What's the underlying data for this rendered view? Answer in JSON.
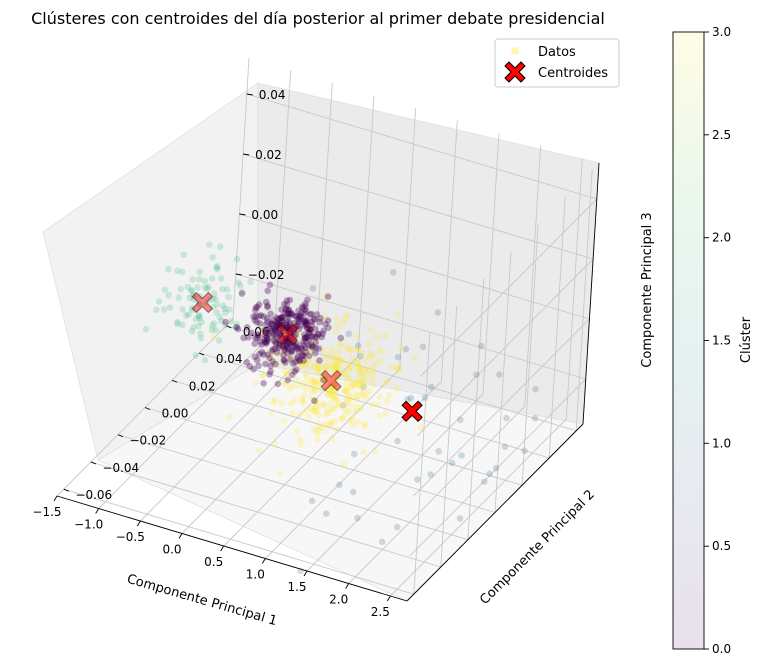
{
  "chart_data": {
    "type": "scatter",
    "title": "Clústeres con centroides del día posterior al primer debate presidencial",
    "axes": {
      "x": {
        "label": "Componente Principal 1",
        "ticks": [
          "−1.5",
          "−1.0",
          "−0.5",
          "0.0",
          "0.5",
          "1.0",
          "1.5",
          "2.0",
          "2.5"
        ],
        "range": [
          -1.5,
          2.7
        ]
      },
      "y": {
        "label": "Componente Principal 2",
        "ticks": [
          "−0.06",
          "−0.04",
          "−0.02",
          "0.00",
          "0.02",
          "0.04",
          "0.06"
        ],
        "range": [
          -0.065,
          0.065
        ]
      },
      "z": {
        "label": "Componente Principal 3",
        "ticks": [
          "−0.02",
          "0.00",
          "0.02",
          "0.04"
        ],
        "range": [
          -0.035,
          0.052
        ]
      }
    },
    "legend": {
      "position": "top-right",
      "entries": [
        "Datos",
        "Centroides"
      ]
    },
    "colorbar": {
      "label": "Clúster",
      "ticks": [
        "0.0",
        "0.5",
        "1.0",
        "1.5",
        "2.0",
        "2.5",
        "3.0"
      ],
      "range": [
        0,
        3
      ],
      "colormap": "viridis"
    },
    "grid": true,
    "series": [
      {
        "name": "Datos",
        "cluster_colors": {
          "0": "#440154",
          "1": "#31688e",
          "2": "#35b779",
          "3": "#fde725"
        }
      },
      {
        "name": "Centroides",
        "marker_color": "#ff0000",
        "points": [
          {
            "cluster": 0,
            "x": 0.05,
            "y": 0.005,
            "z": 0.0
          },
          {
            "cluster": 1,
            "x": 1.65,
            "y": 0.0,
            "z": -0.01
          },
          {
            "cluster": 2,
            "x": -0.9,
            "y": 0.0,
            "z": 0.005
          },
          {
            "cluster": 3,
            "x": 0.75,
            "y": -0.005,
            "z": -0.005
          }
        ]
      }
    ]
  }
}
